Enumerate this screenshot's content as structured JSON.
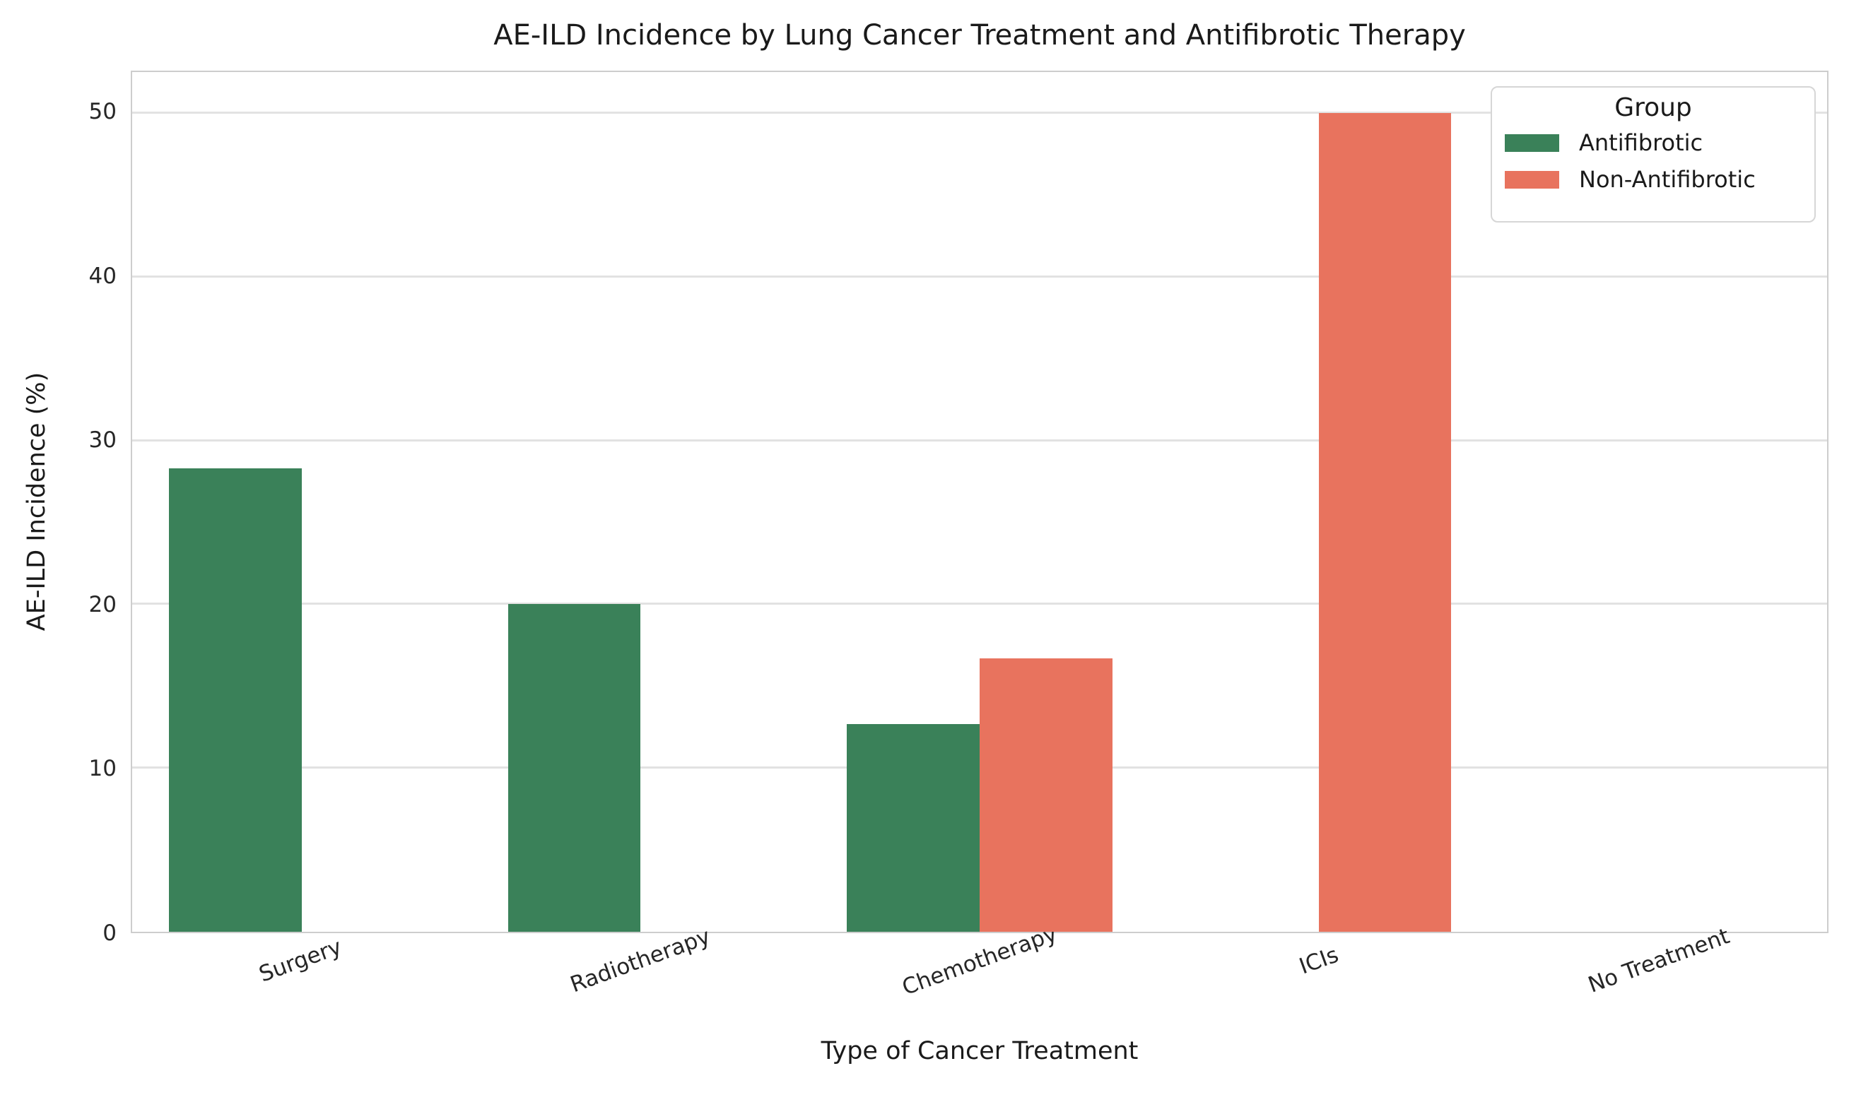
{
  "chart_data": {
    "type": "bar",
    "title": "AE-ILD Incidence by Lung Cancer Treatment and Antifibrotic Therapy",
    "xlabel": "Type of Cancer Treatment",
    "ylabel": "AE-ILD Incidence (%)",
    "categories": [
      "Surgery",
      "Radiotherapy",
      "Chemotherapy",
      "ICIs",
      "No Treatment"
    ],
    "series": [
      {
        "name": "Antifibrotic",
        "color": "#3a8159",
        "values": [
          28.3,
          20.0,
          12.7,
          0,
          0
        ]
      },
      {
        "name": "Non-Antifibrotic",
        "color": "#e8735e",
        "values": [
          0,
          0,
          16.7,
          50.0,
          0
        ]
      }
    ],
    "yticks": [
      0,
      10,
      20,
      30,
      40,
      50
    ],
    "ylim": [
      0,
      52.5
    ],
    "grid": true,
    "grid_color": "#e2e2e2",
    "axis_color": "#cdcdcd",
    "legend_title": "Group",
    "legend_position": "upper right",
    "bar_tick_rotation_deg": -20
  }
}
